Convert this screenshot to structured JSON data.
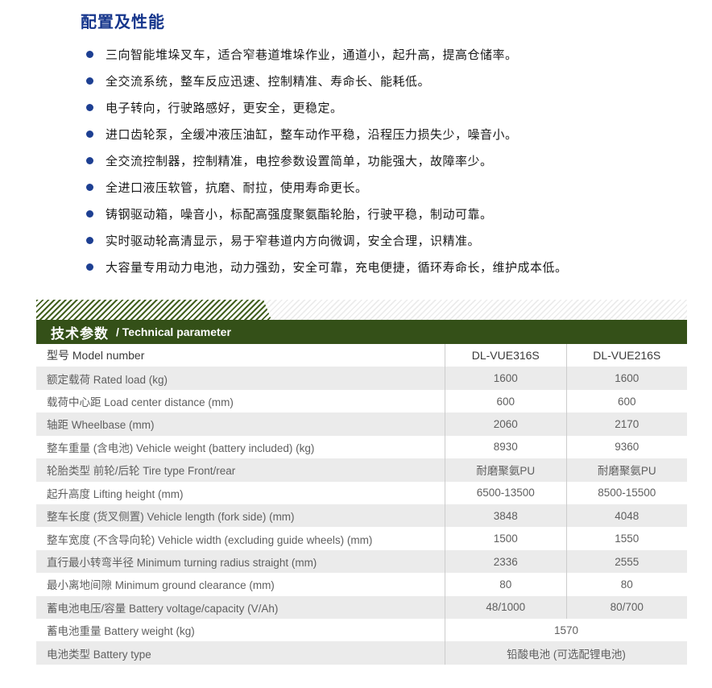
{
  "page": {
    "title": "配置及性能"
  },
  "features": {
    "items": [
      "三向智能堆垛叉车，适合窄巷道堆垛作业，通道小，起升高，提高仓储率。",
      "全交流系统，整车反应迅速、控制精准、寿命长、能耗低。",
      "电子转向，行驶路感好，更安全，更稳定。",
      "进口齿轮泵，全缓冲液压油缸，整车动作平稳，沿程压力损失少，噪音小。",
      "全交流控制器，控制精准，电控参数设置简单，功能强大，故障率少。",
      "全进口液压软管，抗磨、耐拉，使用寿命更长。",
      "铸钢驱动箱，噪音小，标配高强度聚氨酯轮胎，行驶平稳，制动可靠。",
      "实时驱动轮高清显示，易于窄巷道内方向微调，安全合理，识精准。",
      "大容量专用动力电池，动力强劲，安全可靠，充电便捷，循环寿命长，维护成本低。"
    ]
  },
  "tech": {
    "header_cn": "技术参数",
    "header_en": "/ Technical parameter",
    "colors": {
      "title_blue": "#16368c",
      "bullet_blue": "#1d3f92",
      "header_green": "#345018",
      "stripe_green": "#42601f",
      "row_gray": "#ebebeb",
      "divider_gray": "#cccccc"
    },
    "table": {
      "header": {
        "label": "型号 Model number",
        "col1": "DL-VUE316S",
        "col2": "DL-VUE216S"
      },
      "rows": [
        {
          "label": "额定载荷 Rated load (kg)",
          "col1": "1600",
          "col2": "1600"
        },
        {
          "label": "载荷中心距 Load center distance (mm)",
          "col1": "600",
          "col2": "600"
        },
        {
          "label": "轴距 Wheelbase (mm)",
          "col1": "2060",
          "col2": "2170"
        },
        {
          "label": "整车重量 (含电池) Vehicle weight (battery included) (kg)",
          "col1": "8930",
          "col2": "9360"
        },
        {
          "label": "轮胎类型 前轮/后轮 Tire type Front/rear",
          "col1": "耐磨聚氨PU",
          "col2": "耐磨聚氨PU"
        },
        {
          "label": "起升高度 Lifting height (mm)",
          "col1": "6500-13500",
          "col2": "8500-15500"
        },
        {
          "label": "整车长度 (货叉侧置) Vehicle length (fork side) (mm)",
          "col1": "3848",
          "col2": "4048"
        },
        {
          "label": "整车宽度 (不含导向轮) Vehicle width (excluding guide wheels) (mm)",
          "col1": "1500",
          "col2": "1550"
        },
        {
          "label": "直行最小转弯半径 Minimum turning radius straight (mm)",
          "col1": "2336",
          "col2": "2555"
        },
        {
          "label": "最小离地间隙 Minimum ground clearance (mm)",
          "col1": "80",
          "col2": "80"
        },
        {
          "label": "蓄电池电压/容量 Battery voltage/capacity (V/Ah)",
          "col1": "48/1000",
          "col2": "80/700"
        },
        {
          "label": "蓄电池重量 Battery weight (kg)",
          "value": "1570",
          "merged": true
        },
        {
          "label": "电池类型 Battery type",
          "value": "铅酸电池 (可选配锂电池)",
          "merged": true
        }
      ]
    }
  }
}
